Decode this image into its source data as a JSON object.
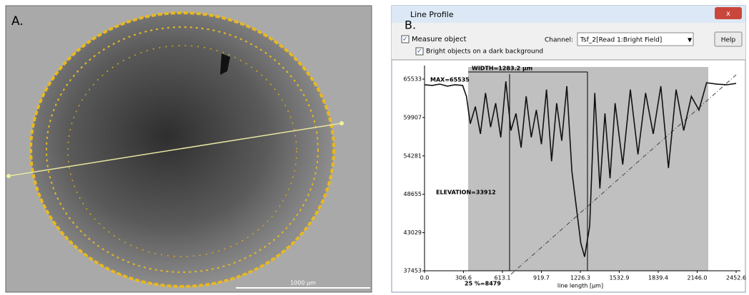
{
  "panels": {
    "left_label": "A.",
    "right_label": "B."
  },
  "image": {
    "scale_bar": "1000 µm"
  },
  "dialog": {
    "title": "Line Profile",
    "measure_object": "Measure object",
    "bright_objects": "Bright objects on a dark background",
    "channel_label": "Channel:",
    "channel_value": "Tsf_2[Read 1:Bright Field]",
    "help": "Help"
  },
  "chart_data": {
    "type": "line",
    "annotations": {
      "width": "WIDTH=1283.2 µm",
      "max": "MAX=65535",
      "elevation": "ELEVATION=33912",
      "quarter": "25 %=8479"
    },
    "xlabel": "line length [µm]",
    "xlim": [
      0,
      2452.6
    ],
    "ylim": [
      37453,
      65533
    ],
    "xticks": [
      {
        "value": 0,
        "label": "0.0"
      },
      306.6,
      613.1,
      919.7,
      1226.3,
      1532.9,
      1839.4,
      {
        "value": 2146,
        "label": "2146.0"
      },
      2452.6
    ],
    "yticks": [
      37453,
      43029,
      48655,
      54281,
      59907,
      65533
    ],
    "color": "#111111",
    "x": [
      0,
      60,
      120,
      180,
      240,
      300,
      330,
      360,
      400,
      440,
      480,
      520,
      560,
      600,
      640,
      680,
      720,
      760,
      800,
      840,
      880,
      920,
      960,
      1000,
      1040,
      1080,
      1120,
      1160,
      1200,
      1230,
      1260,
      1300,
      1340,
      1380,
      1420,
      1460,
      1500,
      1560,
      1620,
      1680,
      1740,
      1800,
      1860,
      1920,
      1980,
      2040,
      2100,
      2160,
      2220,
      2300,
      2380,
      2452.6
    ],
    "values": [
      64700,
      64600,
      64800,
      64500,
      64700,
      64600,
      63000,
      59000,
      61500,
      57500,
      63500,
      58500,
      62000,
      57000,
      65200,
      58000,
      60500,
      55500,
      63000,
      57000,
      61000,
      56000,
      64000,
      53500,
      62000,
      56500,
      64500,
      52000,
      46000,
      41500,
      39500,
      44000,
      63500,
      49500,
      60500,
      51000,
      62000,
      53000,
      64000,
      54500,
      63500,
      57500,
      64500,
      52500,
      64000,
      58000,
      63000,
      61000,
      65000,
      64800,
      64700,
      64900
    ]
  }
}
